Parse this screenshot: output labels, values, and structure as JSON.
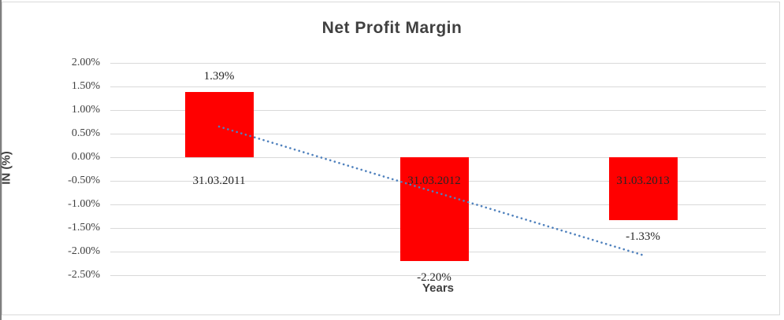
{
  "chart_data": {
    "type": "bar",
    "title": "Net Profit Margin",
    "xlabel": "Years",
    "ylabel": "IN (%)",
    "categories": [
      "31.03.2011",
      "31.03.2012",
      "31.03.2013"
    ],
    "values": [
      1.39,
      -2.2,
      -1.33
    ],
    "data_labels": [
      "1.39%",
      "-2.20%",
      "-1.33%"
    ],
    "y_ticks": [
      {
        "label": "2.00%",
        "value": 2.0
      },
      {
        "label": "1.50%",
        "value": 1.5
      },
      {
        "label": "1.00%",
        "value": 1.0
      },
      {
        "label": "0.50%",
        "value": 0.5
      },
      {
        "label": "0.00%",
        "value": 0.0
      },
      {
        "label": "-0.50%",
        "value": -0.5
      },
      {
        "label": "-1.00%",
        "value": -1.0
      },
      {
        "label": "-1.50%",
        "value": -1.5
      },
      {
        "label": "-2.00%",
        "value": -2.0
      },
      {
        "label": "-2.50%",
        "value": -2.5
      }
    ],
    "ylim": [
      -2.5,
      2.0
    ],
    "grid": true,
    "legend": "none",
    "bar_color": "#ff0000",
    "gridline_color": "#d9d9d9",
    "text_color": "#404040",
    "trendline": {
      "type": "linear",
      "style": "dotted",
      "color": "#4f81bd",
      "start_value": 0.65,
      "end_value": -2.07
    }
  }
}
